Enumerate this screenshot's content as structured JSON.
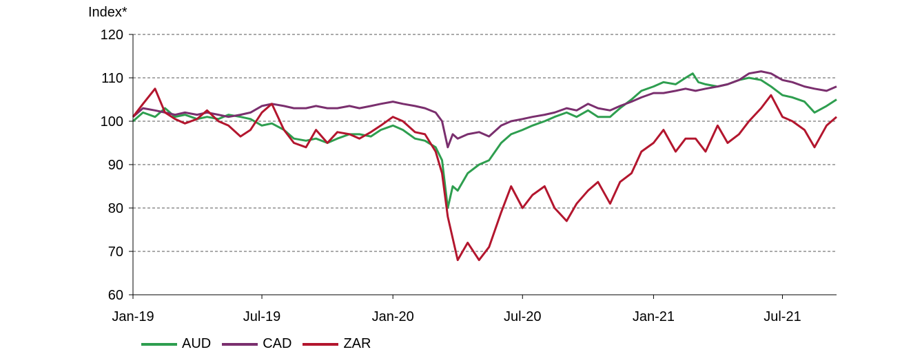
{
  "chart_data": {
    "type": "line",
    "ylabel": "Index*",
    "ylim": [
      60,
      120
    ],
    "yticks": [
      60,
      70,
      80,
      90,
      100,
      110,
      120
    ],
    "xlim": [
      "2019-01-01",
      "2021-09-15"
    ],
    "xticks": [
      {
        "date": "2019-01-01",
        "label": "Jan-19"
      },
      {
        "date": "2019-07-01",
        "label": "Jul-19"
      },
      {
        "date": "2020-01-01",
        "label": "Jan-20"
      },
      {
        "date": "2020-07-01",
        "label": "Jul-20"
      },
      {
        "date": "2021-01-01",
        "label": "Jan-21"
      },
      {
        "date": "2021-07-01",
        "label": "Jul-21"
      }
    ],
    "grid": "horizontal-dashed",
    "legend_position": "bottom-left",
    "series": [
      {
        "name": "AUD",
        "color": "#2e9e4f",
        "points": [
          [
            "2019-01-01",
            100
          ],
          [
            "2019-01-15",
            102
          ],
          [
            "2019-02-01",
            101
          ],
          [
            "2019-02-15",
            103
          ],
          [
            "2019-03-01",
            101
          ],
          [
            "2019-03-15",
            101.5
          ],
          [
            "2019-04-01",
            100.5
          ],
          [
            "2019-04-15",
            101
          ],
          [
            "2019-05-01",
            100.5
          ],
          [
            "2019-05-15",
            101.5
          ],
          [
            "2019-06-01",
            101
          ],
          [
            "2019-06-15",
            100.5
          ],
          [
            "2019-07-01",
            99
          ],
          [
            "2019-07-15",
            99.5
          ],
          [
            "2019-08-01",
            98
          ],
          [
            "2019-08-15",
            96
          ],
          [
            "2019-09-01",
            95.5
          ],
          [
            "2019-09-15",
            96
          ],
          [
            "2019-10-01",
            95
          ],
          [
            "2019-10-15",
            96
          ],
          [
            "2019-11-01",
            97
          ],
          [
            "2019-11-15",
            97
          ],
          [
            "2019-12-01",
            96.5
          ],
          [
            "2019-12-15",
            98
          ],
          [
            "2020-01-01",
            99
          ],
          [
            "2020-01-15",
            98
          ],
          [
            "2020-02-01",
            96
          ],
          [
            "2020-02-15",
            95.5
          ],
          [
            "2020-03-01",
            94
          ],
          [
            "2020-03-10",
            91
          ],
          [
            "2020-03-18",
            80
          ],
          [
            "2020-03-25",
            85
          ],
          [
            "2020-04-01",
            84
          ],
          [
            "2020-04-15",
            88
          ],
          [
            "2020-05-01",
            90
          ],
          [
            "2020-05-15",
            91
          ],
          [
            "2020-06-01",
            95
          ],
          [
            "2020-06-15",
            97
          ],
          [
            "2020-07-01",
            98
          ],
          [
            "2020-07-15",
            99
          ],
          [
            "2020-08-01",
            100
          ],
          [
            "2020-08-15",
            101
          ],
          [
            "2020-09-01",
            102
          ],
          [
            "2020-09-15",
            101
          ],
          [
            "2020-10-01",
            102.5
          ],
          [
            "2020-10-15",
            101
          ],
          [
            "2020-11-01",
            101
          ],
          [
            "2020-11-15",
            103
          ],
          [
            "2020-12-01",
            105
          ],
          [
            "2020-12-15",
            107
          ],
          [
            "2021-01-01",
            108
          ],
          [
            "2021-01-15",
            109
          ],
          [
            "2021-02-01",
            108.5
          ],
          [
            "2021-02-15",
            110
          ],
          [
            "2021-02-25",
            111
          ],
          [
            "2021-03-05",
            109
          ],
          [
            "2021-03-15",
            108.5
          ],
          [
            "2021-04-01",
            108
          ],
          [
            "2021-04-15",
            108.5
          ],
          [
            "2021-05-01",
            109.5
          ],
          [
            "2021-05-15",
            110
          ],
          [
            "2021-06-01",
            109.5
          ],
          [
            "2021-06-15",
            108
          ],
          [
            "2021-07-01",
            106
          ],
          [
            "2021-07-15",
            105.5
          ],
          [
            "2021-08-01",
            104.5
          ],
          [
            "2021-08-15",
            102
          ],
          [
            "2021-09-01",
            103.5
          ],
          [
            "2021-09-15",
            105
          ]
        ]
      },
      {
        "name": "CAD",
        "color": "#7a2f6e",
        "points": [
          [
            "2019-01-01",
            101
          ],
          [
            "2019-01-15",
            103
          ],
          [
            "2019-02-01",
            102.5
          ],
          [
            "2019-02-15",
            102
          ],
          [
            "2019-03-01",
            101.5
          ],
          [
            "2019-03-15",
            102
          ],
          [
            "2019-04-01",
            101.5
          ],
          [
            "2019-04-15",
            102
          ],
          [
            "2019-05-01",
            101.5
          ],
          [
            "2019-05-15",
            101
          ],
          [
            "2019-06-01",
            101.5
          ],
          [
            "2019-06-15",
            102
          ],
          [
            "2019-07-01",
            103.5
          ],
          [
            "2019-07-15",
            104
          ],
          [
            "2019-08-01",
            103.5
          ],
          [
            "2019-08-15",
            103
          ],
          [
            "2019-09-01",
            103
          ],
          [
            "2019-09-15",
            103.5
          ],
          [
            "2019-10-01",
            103
          ],
          [
            "2019-10-15",
            103
          ],
          [
            "2019-11-01",
            103.5
          ],
          [
            "2019-11-15",
            103
          ],
          [
            "2019-12-01",
            103.5
          ],
          [
            "2019-12-15",
            104
          ],
          [
            "2020-01-01",
            104.5
          ],
          [
            "2020-01-15",
            104
          ],
          [
            "2020-02-01",
            103.5
          ],
          [
            "2020-02-15",
            103
          ],
          [
            "2020-03-01",
            102
          ],
          [
            "2020-03-10",
            100
          ],
          [
            "2020-03-18",
            94
          ],
          [
            "2020-03-25",
            97
          ],
          [
            "2020-04-01",
            96
          ],
          [
            "2020-04-15",
            97
          ],
          [
            "2020-05-01",
            97.5
          ],
          [
            "2020-05-15",
            96.5
          ],
          [
            "2020-06-01",
            99
          ],
          [
            "2020-06-15",
            100
          ],
          [
            "2020-07-01",
            100.5
          ],
          [
            "2020-07-15",
            101
          ],
          [
            "2020-08-01",
            101.5
          ],
          [
            "2020-08-15",
            102
          ],
          [
            "2020-09-01",
            103
          ],
          [
            "2020-09-15",
            102.5
          ],
          [
            "2020-10-01",
            104
          ],
          [
            "2020-10-15",
            103
          ],
          [
            "2020-11-01",
            102.5
          ],
          [
            "2020-11-15",
            103.5
          ],
          [
            "2020-12-01",
            104.5
          ],
          [
            "2020-12-15",
            105.5
          ],
          [
            "2021-01-01",
            106.5
          ],
          [
            "2021-01-15",
            106.5
          ],
          [
            "2021-02-01",
            107
          ],
          [
            "2021-02-15",
            107.5
          ],
          [
            "2021-03-01",
            107
          ],
          [
            "2021-03-15",
            107.5
          ],
          [
            "2021-04-01",
            108
          ],
          [
            "2021-04-15",
            108.5
          ],
          [
            "2021-05-01",
            109.5
          ],
          [
            "2021-05-15",
            111
          ],
          [
            "2021-06-01",
            111.5
          ],
          [
            "2021-06-15",
            111
          ],
          [
            "2021-07-01",
            109.5
          ],
          [
            "2021-07-15",
            109
          ],
          [
            "2021-08-01",
            108
          ],
          [
            "2021-08-15",
            107.5
          ],
          [
            "2021-09-01",
            107
          ],
          [
            "2021-09-15",
            108
          ]
        ]
      },
      {
        "name": "ZAR",
        "color": "#b3162e",
        "points": [
          [
            "2019-01-01",
            101
          ],
          [
            "2019-01-15",
            104
          ],
          [
            "2019-02-01",
            107.5
          ],
          [
            "2019-02-15",
            102
          ],
          [
            "2019-03-01",
            100.5
          ],
          [
            "2019-03-15",
            99.5
          ],
          [
            "2019-04-01",
            100.5
          ],
          [
            "2019-04-15",
            102.5
          ],
          [
            "2019-05-01",
            100
          ],
          [
            "2019-05-15",
            99
          ],
          [
            "2019-06-01",
            96.5
          ],
          [
            "2019-06-15",
            98
          ],
          [
            "2019-07-01",
            102
          ],
          [
            "2019-07-15",
            104
          ],
          [
            "2019-08-01",
            98
          ],
          [
            "2019-08-15",
            95
          ],
          [
            "2019-09-01",
            94
          ],
          [
            "2019-09-15",
            98
          ],
          [
            "2019-10-01",
            95
          ],
          [
            "2019-10-15",
            97.5
          ],
          [
            "2019-11-01",
            97
          ],
          [
            "2019-11-15",
            96
          ],
          [
            "2019-12-01",
            97.5
          ],
          [
            "2019-12-15",
            99
          ],
          [
            "2020-01-01",
            101
          ],
          [
            "2020-01-15",
            100
          ],
          [
            "2020-02-01",
            97.5
          ],
          [
            "2020-02-15",
            97
          ],
          [
            "2020-03-01",
            93
          ],
          [
            "2020-03-10",
            88
          ],
          [
            "2020-03-18",
            78
          ],
          [
            "2020-03-25",
            73
          ],
          [
            "2020-04-01",
            68
          ],
          [
            "2020-04-15",
            72
          ],
          [
            "2020-05-01",
            68
          ],
          [
            "2020-05-15",
            71
          ],
          [
            "2020-06-01",
            79
          ],
          [
            "2020-06-15",
            85
          ],
          [
            "2020-07-01",
            80
          ],
          [
            "2020-07-15",
            83
          ],
          [
            "2020-08-01",
            85
          ],
          [
            "2020-08-15",
            80
          ],
          [
            "2020-09-01",
            77
          ],
          [
            "2020-09-15",
            81
          ],
          [
            "2020-10-01",
            84
          ],
          [
            "2020-10-15",
            86
          ],
          [
            "2020-11-01",
            81
          ],
          [
            "2020-11-15",
            86
          ],
          [
            "2020-12-01",
            88
          ],
          [
            "2020-12-15",
            93
          ],
          [
            "2021-01-01",
            95
          ],
          [
            "2021-01-15",
            98
          ],
          [
            "2021-02-01",
            93
          ],
          [
            "2021-02-15",
            96
          ],
          [
            "2021-03-01",
            96
          ],
          [
            "2021-03-15",
            93
          ],
          [
            "2021-04-01",
            99
          ],
          [
            "2021-04-15",
            95
          ],
          [
            "2021-05-01",
            97
          ],
          [
            "2021-05-15",
            100
          ],
          [
            "2021-06-01",
            103
          ],
          [
            "2021-06-15",
            106
          ],
          [
            "2021-07-01",
            101
          ],
          [
            "2021-07-15",
            100
          ],
          [
            "2021-08-01",
            98
          ],
          [
            "2021-08-15",
            94
          ],
          [
            "2021-09-01",
            99
          ],
          [
            "2021-09-15",
            101
          ]
        ]
      }
    ]
  }
}
